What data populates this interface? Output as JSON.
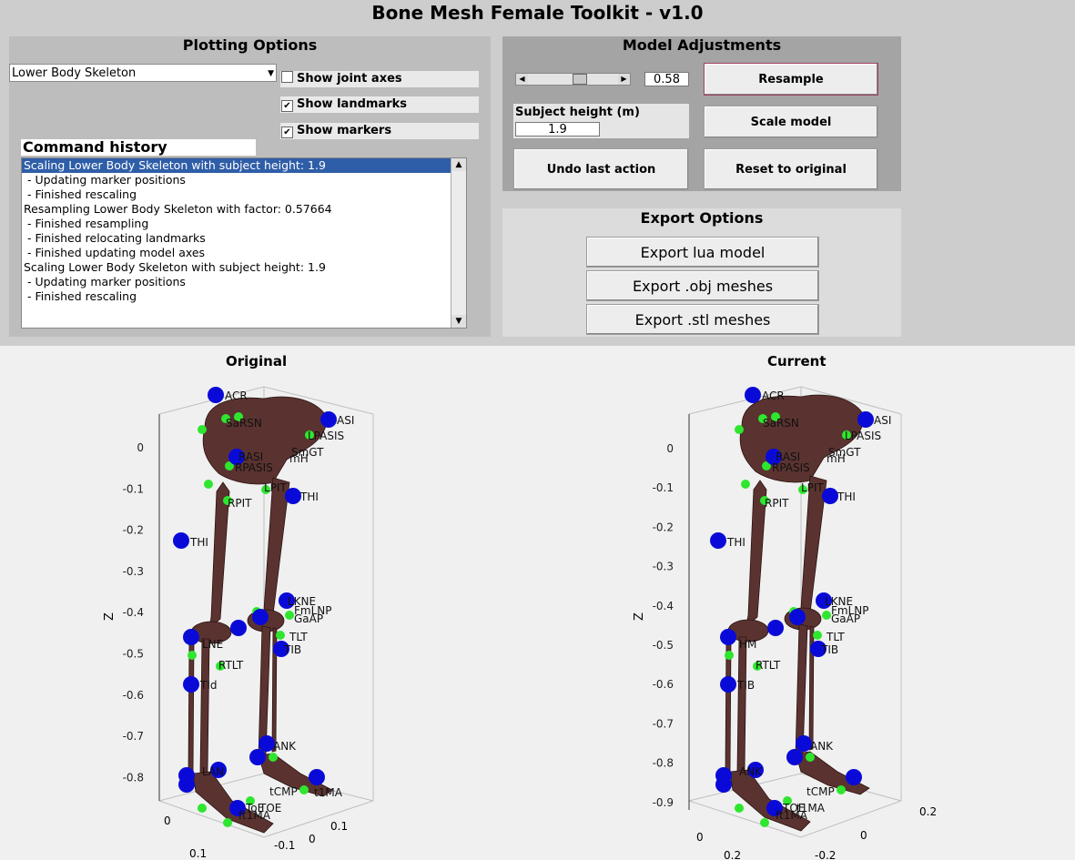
{
  "window": {
    "title": "Bone Mesh Female Toolkit - v1.0"
  },
  "plotting": {
    "title": "Plotting Options",
    "model_select": "Lower Body Skeleton",
    "checkboxes": [
      {
        "label": "Show joint axes",
        "checked": false
      },
      {
        "label": "Show landmarks",
        "checked": true
      },
      {
        "label": "Show markers",
        "checked": true
      }
    ],
    "history_title": "Command history",
    "history": [
      "Scaling Lower Body Skeleton with subject height: 1.9",
      " - Updating marker positions",
      " - Finished rescaling",
      "Resampling Lower Body Skeleton with factor: 0.57664",
      " - Finished resampling",
      " - Finished relocating landmarks",
      " - Finished updating model axes",
      "Scaling Lower Body Skeleton with subject height: 1.9",
      " - Updating marker positions",
      " - Finished rescaling"
    ]
  },
  "model": {
    "title": "Model Adjustments",
    "slider_value": "0.58",
    "height_label": "Subject height (m)",
    "height_value": "1.9",
    "resample": "Resample",
    "scale": "Scale model",
    "undo": "Undo last action",
    "reset": "Reset to original"
  },
  "export": {
    "title": "Export Options",
    "lua": "Export lua model",
    "obj": "Export .obj meshes",
    "stl": "Export .stl meshes"
  },
  "original": {
    "title": "Original",
    "zlabel": "Z",
    "zticks": [
      "0",
      "-0.1",
      "-0.2",
      "-0.3",
      "-0.4",
      "-0.5",
      "-0.6",
      "-0.7",
      "-0.8"
    ],
    "xticks": [
      "0",
      "0.1"
    ],
    "yticks": [
      "0.1",
      "0",
      "-0.1"
    ],
    "labels": [
      "ACR",
      "SaRSN",
      "ASI",
      "LPASIS",
      "RASI",
      "RPASIS",
      "SmGT",
      "mH",
      "RPIT",
      "LPIT",
      "THI",
      "THI",
      "LKNE",
      "FmLNP",
      "GaAP",
      "TLT",
      "TIB",
      "RTLT",
      "LNE",
      "TId",
      "ANK",
      "LAN",
      "ToE",
      "TOE",
      "ft1MA",
      "tCMP",
      "t1MA"
    ]
  },
  "current": {
    "title": "Current",
    "zlabel": "Z",
    "zticks": [
      "0",
      "-0.1",
      "-0.2",
      "-0.3",
      "-0.4",
      "-0.5",
      "-0.6",
      "-0.7",
      "-0.8",
      "-0.9"
    ],
    "xticks": [
      "0",
      "0.2"
    ],
    "yticks": [
      "0.2",
      "0",
      "-0.2"
    ],
    "labels": [
      "ACR",
      "SaRSN",
      "ASI",
      "LPASIS",
      "RASI",
      "RPASIS",
      "SmGT",
      "mH",
      "RPIT",
      "LPIT",
      "THI",
      "THI",
      "LKNE",
      "FmLNP",
      "GaAP",
      "TLT",
      "TIB",
      "RTLT",
      "HM",
      "TIB",
      "ANK",
      "ANK",
      "TOE",
      "t1MA",
      "ft1MA",
      "tCMP"
    ]
  },
  "colors": {
    "bone": "#5a3330",
    "marker": "#0a0ad8",
    "landmark": "#2ee62e",
    "selection": "#2f5ea8"
  }
}
